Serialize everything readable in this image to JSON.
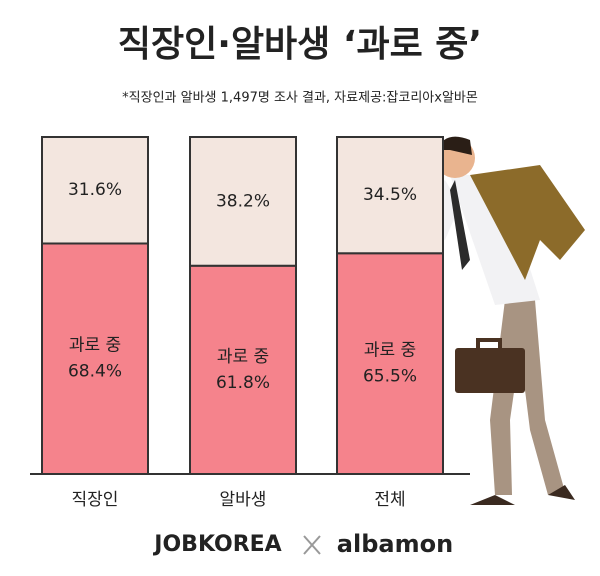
{
  "chart_data": {
    "type": "stacked_bar",
    "title": "직장인·알바생 ‘과로 중’",
    "subtitle": "*직장인과 알바생 1,497명 조사 결과, 자료제공:잡코리아x알바몬",
    "categories": [
      "직장인",
      "알바생",
      "전체"
    ],
    "series": [
      {
        "name": "과로 중",
        "color": "#f5838c",
        "values": [
          68.4,
          61.8,
          65.5
        ],
        "value_labels": [
          "68.4%",
          "61.8%",
          "65.5%"
        ]
      },
      {
        "color": "#f3e6df",
        "values": [
          31.6,
          38.2,
          34.5
        ],
        "value_labels": [
          "31.6%",
          "38.2%",
          "34.5%"
        ]
      }
    ],
    "ylim": [
      0,
      100
    ],
    "logos": [
      "JOBKOREA",
      "albamon"
    ]
  }
}
